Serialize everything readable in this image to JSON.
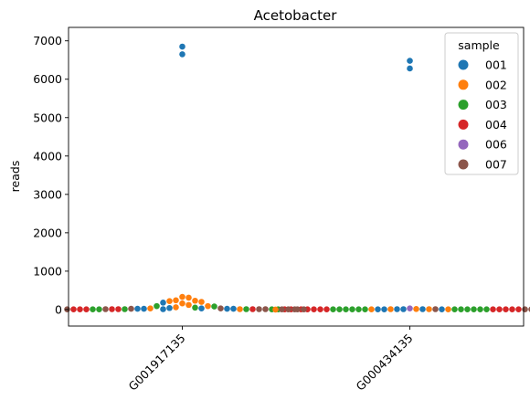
{
  "chart_data": {
    "type": "scatter",
    "subtype": "swarm",
    "title": "Acetobacter",
    "xlabel": "",
    "ylabel": "reads",
    "categories": [
      "G001917135",
      "G000434135"
    ],
    "ylim": [
      -430,
      7350
    ],
    "yticks": [
      0,
      1000,
      2000,
      3000,
      4000,
      5000,
      6000,
      7000
    ],
    "grid": false,
    "legend": {
      "title": "sample",
      "placement": "top-right"
    },
    "series": [
      {
        "name": "001",
        "color": "#1f77b4",
        "points": [
          {
            "category": "G001917135",
            "y": [
              6850,
              6650,
              180,
              40,
              30,
              20,
              20,
              20,
              20,
              10
            ]
          },
          {
            "category": "G000434135",
            "y": [
              6480,
              6280,
              10,
              10,
              10,
              5,
              5,
              5
            ]
          }
        ]
      },
      {
        "name": "002",
        "color": "#ff7f0e",
        "points": [
          {
            "category": "G001917135",
            "y": [
              330,
              310,
              240,
              230,
              220,
              200,
              160,
              120,
              90,
              60,
              30,
              10
            ]
          },
          {
            "category": "G000434135",
            "y": [
              15,
              10,
              10,
              5,
              5,
              0
            ]
          }
        ]
      },
      {
        "name": "003",
        "color": "#2ca02c",
        "points": [
          {
            "category": "G001917135",
            "y": [
              90,
              80,
              50,
              10,
              10,
              5,
              5,
              5,
              5
            ]
          },
          {
            "category": "G000434135",
            "y": [
              5,
              5,
              5,
              5,
              5,
              5,
              5,
              5,
              5,
              5,
              5,
              5
            ]
          }
        ]
      },
      {
        "name": "004",
        "color": "#d62728",
        "points": [
          {
            "category": "G001917135",
            "y": [
              10,
              10,
              10,
              5,
              5,
              5,
              5,
              5
            ]
          },
          {
            "category": "G000434135",
            "y": [
              5,
              5,
              5,
              5,
              5,
              5,
              5,
              5,
              5,
              5
            ]
          }
        ]
      },
      {
        "name": "006",
        "color": "#9467bd",
        "points": [
          {
            "category": "G000434135",
            "y": [
              30
            ]
          }
        ]
      },
      {
        "name": "007",
        "color": "#8c564b",
        "points": [
          {
            "category": "G001917135",
            "y": [
              30,
              20,
              10,
              10,
              10,
              5,
              5,
              5
            ]
          },
          {
            "category": "G000434135",
            "y": [
              10,
              5,
              5,
              5,
              5,
              5,
              5,
              5
            ]
          }
        ]
      }
    ]
  }
}
